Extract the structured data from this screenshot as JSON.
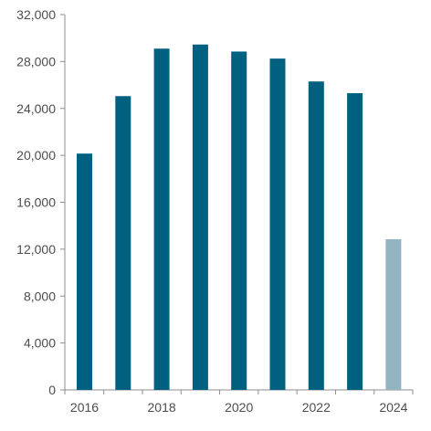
{
  "chart_data": {
    "type": "bar",
    "title": "",
    "xlabel": "",
    "ylabel": "",
    "categories": [
      "2016",
      "2017",
      "2018",
      "2019",
      "2020",
      "2021",
      "2022",
      "2023",
      "2024"
    ],
    "x_tick_labels": [
      "2016",
      "2018",
      "2020",
      "2022",
      "2024"
    ],
    "values": [
      20150,
      25050,
      29100,
      29450,
      28850,
      28250,
      26300,
      25300,
      12850
    ],
    "y_ticks": [
      0,
      4000,
      8000,
      12000,
      16000,
      20000,
      24000,
      28000,
      32000
    ],
    "y_tick_labels": [
      "0",
      "4,000",
      "8,000",
      "12,000",
      "16,000",
      "20,000",
      "24,000",
      "28,000",
      "32,000"
    ],
    "ylim": [
      0,
      32000
    ],
    "grid": false,
    "legend": "none",
    "colors": {
      "bar": "#00607f",
      "highlight_bar": "#94b4c2",
      "axis": "#8c8c8c",
      "text": "#4d4d4d"
    },
    "highlight_index": 8
  }
}
